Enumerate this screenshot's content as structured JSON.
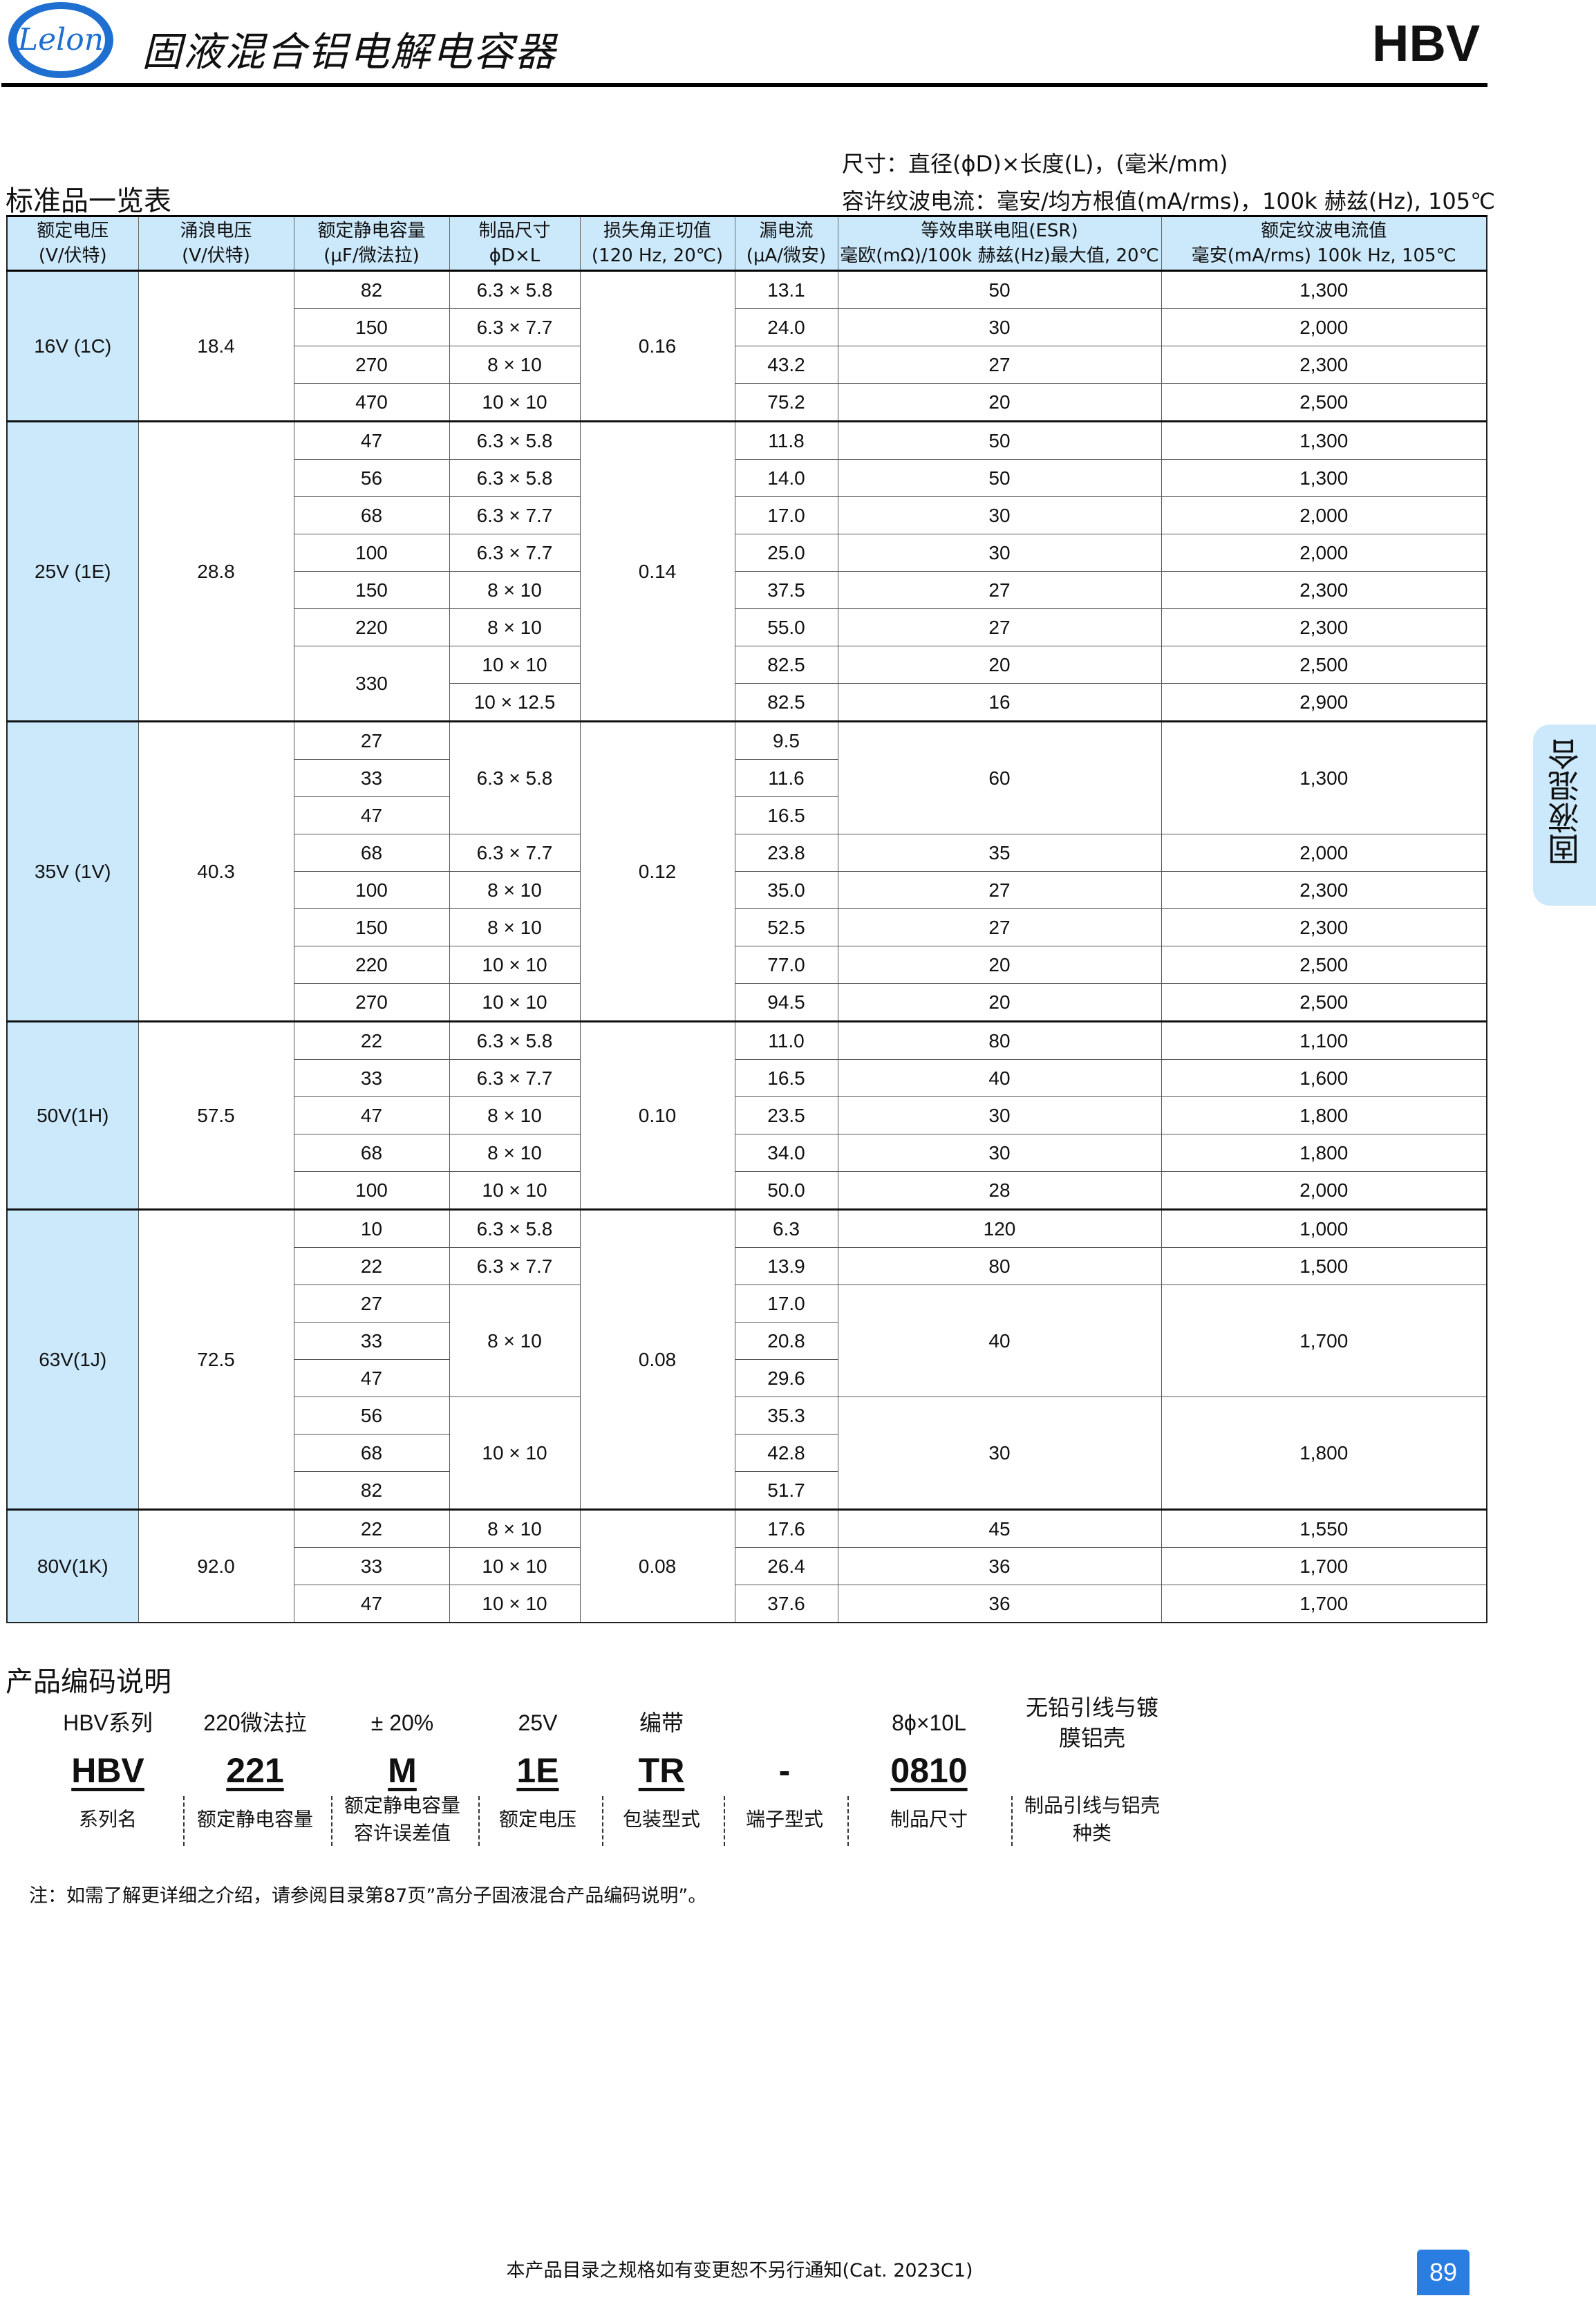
{
  "header": {
    "logo_text": "Lelon",
    "title": "固液混合铝电解电容器",
    "series": "HBV"
  },
  "notes": {
    "dimension": "尺寸：直径(ϕD)×长度(L)，(毫米/mm)",
    "ripple": "容许纹波电流：毫安/均方根值(mA/rms)，100k 赫兹(Hz), 105℃"
  },
  "table": {
    "title": "标准品一览表",
    "headers": [
      [
        "额定电压",
        "(V/伏特)"
      ],
      [
        "涌浪电压",
        "(V/伏特)"
      ],
      [
        "额定静电容量",
        "(μF/微法拉)"
      ],
      [
        "制品尺寸",
        "ϕD×L"
      ],
      [
        "损失角正切值",
        "(120 Hz, 20℃)"
      ],
      [
        "漏电流",
        "(μA/微安)"
      ],
      [
        "等效串联电阻(ESR)",
        "毫欧(mΩ)/100k 赫兹(Hz)最大值, 20℃"
      ],
      [
        "额定纹波电流值",
        "毫安(mA/rms) 100k Hz, 105℃"
      ]
    ],
    "groups": [
      {
        "voltage": "16V (1C)",
        "surge": "18.4",
        "rows": [
          [
            "82",
            "6.3 × 5.8",
            "0.16",
            "13.1",
            "50",
            "1,300"
          ],
          [
            "150",
            "6.3 × 7.7",
            null,
            "24.0",
            "30",
            "2,000"
          ],
          [
            "270",
            "8 × 10",
            null,
            "43.2",
            "27",
            "2,300"
          ],
          [
            "470",
            "10 × 10",
            null,
            "75.2",
            "20",
            "2,500"
          ]
        ]
      },
      {
        "voltage": "25V (1E)",
        "surge": "28.8",
        "rows": [
          [
            "47",
            "6.3 × 5.8",
            "0.14",
            "11.8",
            "50",
            "1,300"
          ],
          [
            "56",
            "6.3 × 5.8",
            null,
            "14.0",
            "50",
            "1,300"
          ],
          [
            "68",
            "6.3 × 7.7",
            null,
            "17.0",
            "30",
            "2,000"
          ],
          [
            "100",
            "6.3 × 7.7",
            null,
            "25.0",
            "30",
            "2,000"
          ],
          [
            "150",
            "8 × 10",
            null,
            "37.5",
            "27",
            "2,300"
          ],
          [
            "220",
            "8 × 10",
            null,
            "55.0",
            "27",
            "2,300"
          ],
          [
            "330",
            "10 × 10",
            null,
            "82.5",
            "20",
            "2,500"
          ],
          [
            null,
            "10 × 12.5",
            null,
            "82.5",
            "16",
            "2,900"
          ]
        ]
      },
      {
        "voltage": "35V (1V)",
        "surge": "40.3",
        "rows": [
          [
            "27",
            "6.3 × 5.8",
            "0.12",
            "9.5",
            "60",
            "1,300"
          ],
          [
            "33",
            null,
            null,
            "11.6",
            null,
            null
          ],
          [
            "47",
            null,
            null,
            "16.5",
            null,
            null
          ],
          [
            "68",
            "6.3 × 7.7",
            null,
            "23.8",
            "35",
            "2,000"
          ],
          [
            "100",
            "8 × 10",
            null,
            "35.0",
            "27",
            "2,300"
          ],
          [
            "150",
            "8 × 10",
            null,
            "52.5",
            "27",
            "2,300"
          ],
          [
            "220",
            "10 × 10",
            null,
            "77.0",
            "20",
            "2,500"
          ],
          [
            "270",
            "10 × 10",
            null,
            "94.5",
            "20",
            "2,500"
          ]
        ]
      },
      {
        "voltage": "50V(1H)",
        "surge": "57.5",
        "rows": [
          [
            "22",
            "6.3 × 5.8",
            "0.10",
            "11.0",
            "80",
            "1,100"
          ],
          [
            "33",
            "6.3 × 7.7",
            null,
            "16.5",
            "40",
            "1,600"
          ],
          [
            "47",
            "8 × 10",
            null,
            "23.5",
            "30",
            "1,800"
          ],
          [
            "68",
            "8 × 10",
            null,
            "34.0",
            "30",
            "1,800"
          ],
          [
            "100",
            "10 × 10",
            null,
            "50.0",
            "28",
            "2,000"
          ]
        ]
      },
      {
        "voltage": "63V(1J)",
        "surge": "72.5",
        "rows": [
          [
            "10",
            "6.3 × 5.8",
            "0.08",
            "6.3",
            "120",
            "1,000"
          ],
          [
            "22",
            "6.3 × 7.7",
            null,
            "13.9",
            "80",
            "1,500"
          ],
          [
            "27",
            "8 × 10",
            null,
            "17.0",
            "40",
            "1,700"
          ],
          [
            "33",
            null,
            null,
            "20.8",
            null,
            null
          ],
          [
            "47",
            null,
            null,
            "29.6",
            null,
            null
          ],
          [
            "56",
            "10 × 10",
            null,
            "35.3",
            "30",
            "1,800"
          ],
          [
            "68",
            null,
            null,
            "42.8",
            null,
            null
          ],
          [
            "82",
            null,
            null,
            "51.7",
            null,
            null
          ]
        ]
      },
      {
        "voltage": "80V(1K)",
        "surge": "92.0",
        "rows": [
          [
            "22",
            "8 × 10",
            "0.08",
            "17.6",
            "45",
            "1,550"
          ],
          [
            "33",
            "10 × 10",
            null,
            "26.4",
            "36",
            "1,700"
          ],
          [
            "47",
            "10 × 10",
            null,
            "37.6",
            "36",
            "1,700"
          ]
        ]
      }
    ]
  },
  "side_tab": "固液混合",
  "code": {
    "title": "产品编码说明",
    "parts": [
      {
        "example": "HBV系列",
        "code": "HBV",
        "label": "系列名"
      },
      {
        "example": "220微法拉",
        "code": "221",
        "label": "额定静电容量"
      },
      {
        "example": "± 20%",
        "code": "M",
        "label": "额定静电容量\n容许误差值"
      },
      {
        "example": "25V",
        "code": "1E",
        "label": "额定电压"
      },
      {
        "example": "编带",
        "code": "TR",
        "label": "包装型式"
      },
      {
        "example": "",
        "code": "-",
        "label": "端子型式"
      },
      {
        "example": "8ϕ×10L",
        "code": "0810",
        "label": "制品尺寸"
      },
      {
        "example": "无铅引线与镀\n膜铝壳",
        "code": "",
        "label": "制品引线与铝壳\n种类"
      }
    ],
    "footnote": "注：如需了解更详细之介绍，请参阅目录第87页”高分子固液混合产品编码说明”。"
  },
  "footer": {
    "text": "本产品目录之规格如有变更恕不另行通知(Cat. 2023C1)",
    "page": "89"
  },
  "colors": {
    "header_fill": "#cce9fb",
    "page_badge": "#2a7de1",
    "logo_blue": "#1e6fd0"
  }
}
